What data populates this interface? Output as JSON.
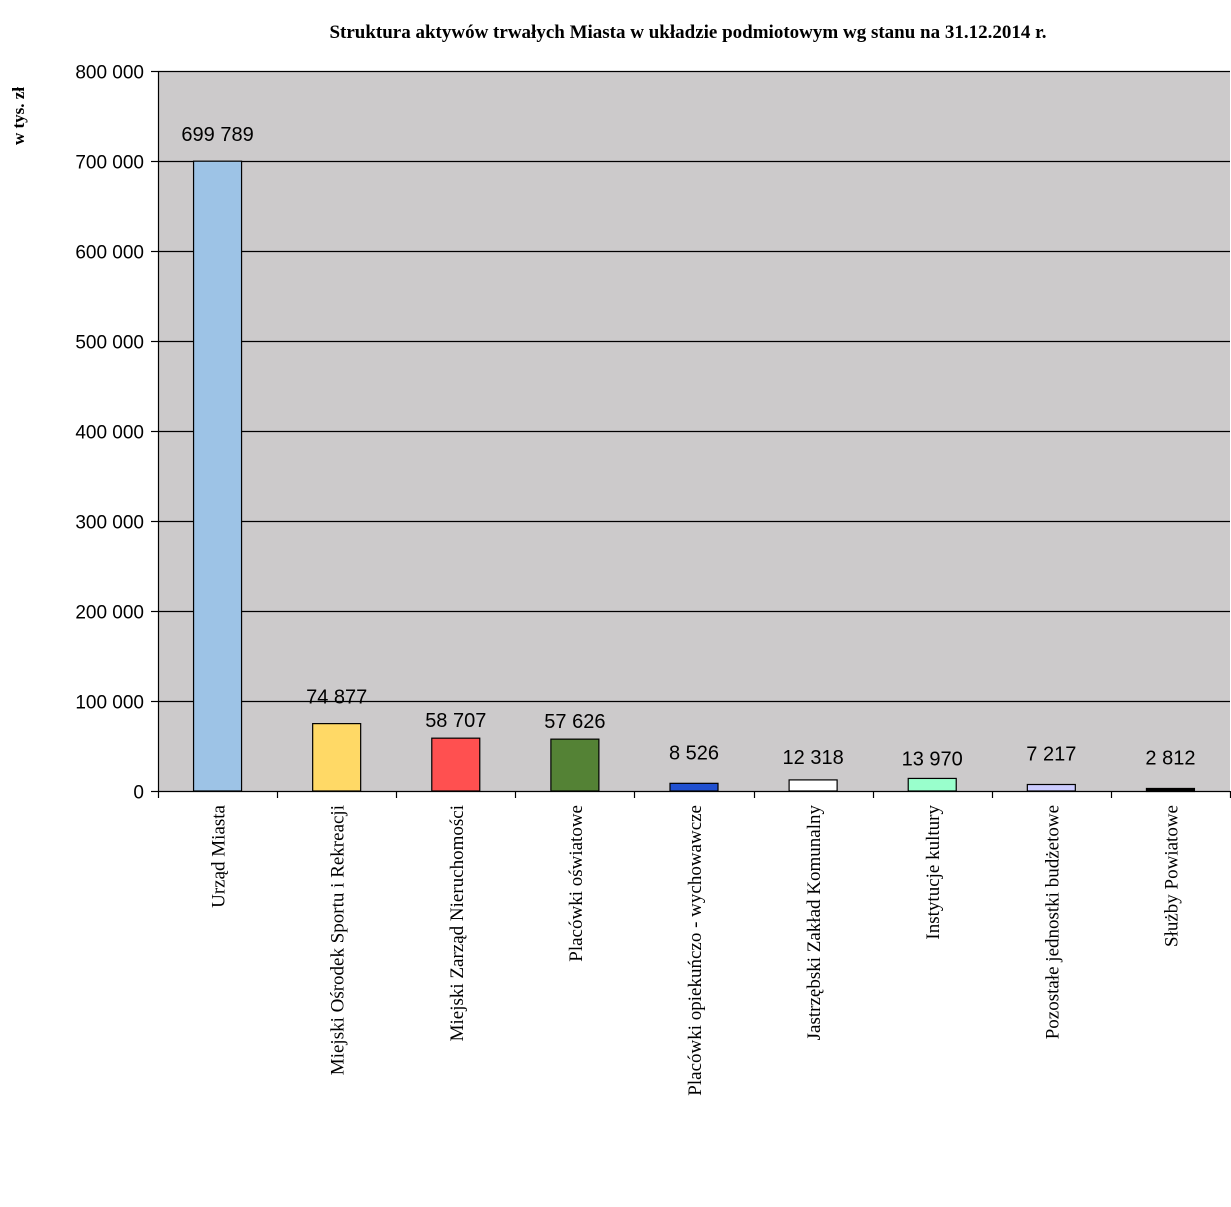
{
  "chart_data": {
    "type": "bar",
    "title": "Struktura aktywów trwałych Miasta w układzie podmiotowym wg stanu na 31.12.2014 r.",
    "ylabel": "w tys. zł",
    "xlabel": "",
    "ylim": [
      0,
      800000
    ],
    "ytick_values": [
      0,
      100000,
      200000,
      300000,
      400000,
      500000,
      600000,
      700000,
      800000
    ],
    "ytick_labels": [
      "0",
      "100 000",
      "200 000",
      "300 000",
      "400 000",
      "500 000",
      "600 000",
      "700 000",
      "800 000"
    ],
    "grid": true,
    "legend": "none",
    "plot_background": "#cccacb",
    "categories": [
      "Urząd Miasta",
      "Miejski Ośrodek Sportu i Rekreacji",
      "Miejski Zarząd Nieruchomości",
      "Placówki oświatowe",
      "Placówki opiekuńczo - wychowawcze",
      "Jastrzębski Zakład Komunalny",
      "Instytucje kultury",
      "Pozostałe jednostki budżetowe",
      "Służby Powiatowe"
    ],
    "values": [
      699789,
      74877,
      58707,
      57626,
      8526,
      12318,
      13970,
      7217,
      2812
    ],
    "value_labels": [
      "699 789",
      "74 877",
      "58 707",
      "57 626",
      "8 526",
      "12 318",
      "13 970",
      "7 217",
      "2 812"
    ],
    "colors": [
      "#9dc3e6",
      "#ffd966",
      "#ff5050",
      "#548235",
      "#2050d0",
      "#ffffff",
      "#99ffcc",
      "#ccccff",
      "#000000"
    ]
  }
}
